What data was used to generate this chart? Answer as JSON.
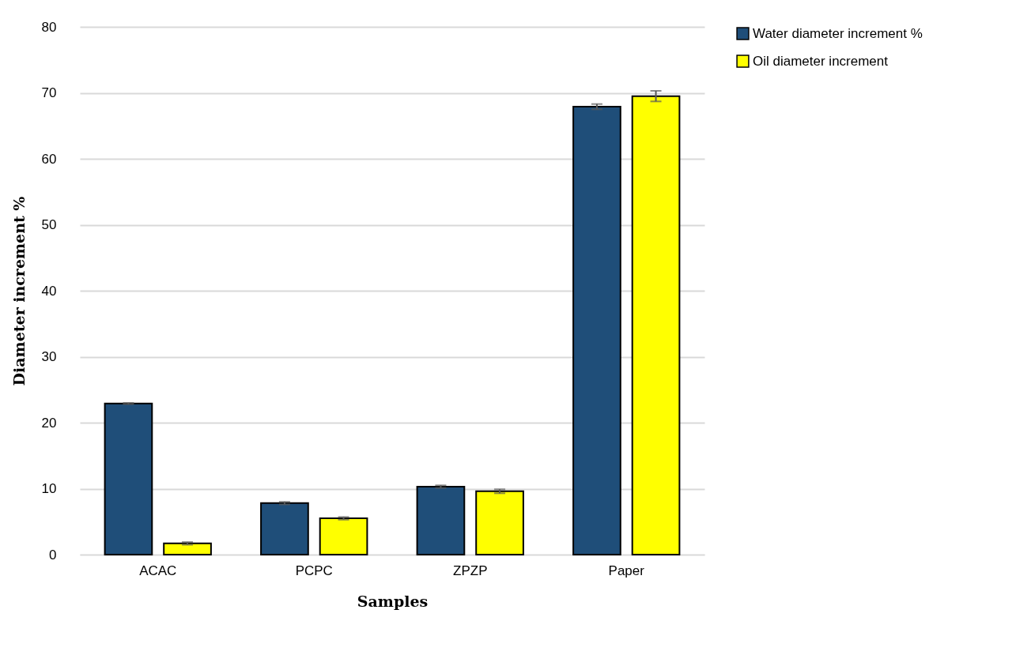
{
  "chart_data": {
    "type": "bar",
    "xlabel": "Samples",
    "ylabel": "Diameter increment %",
    "categories": [
      "ACAC",
      "PCPC",
      "ZPZP",
      "Paper"
    ],
    "series": [
      {
        "name": "Water diameter increment %",
        "color": "#1f4e79",
        "values": [
          22.9,
          7.8,
          10.3,
          67.9
        ],
        "errors": [
          0.1,
          0.2,
          0.2,
          0.4
        ]
      },
      {
        "name": "Oil diameter increment",
        "color": "#ffff00",
        "values": [
          1.7,
          5.5,
          9.6,
          69.5
        ],
        "errors": [
          0.2,
          0.2,
          0.3,
          0.8
        ]
      }
    ],
    "ylim": [
      0,
      80
    ],
    "yticks": [
      0,
      10,
      20,
      30,
      40,
      50,
      60,
      70,
      80
    ],
    "grid": "y",
    "legend": "right"
  }
}
